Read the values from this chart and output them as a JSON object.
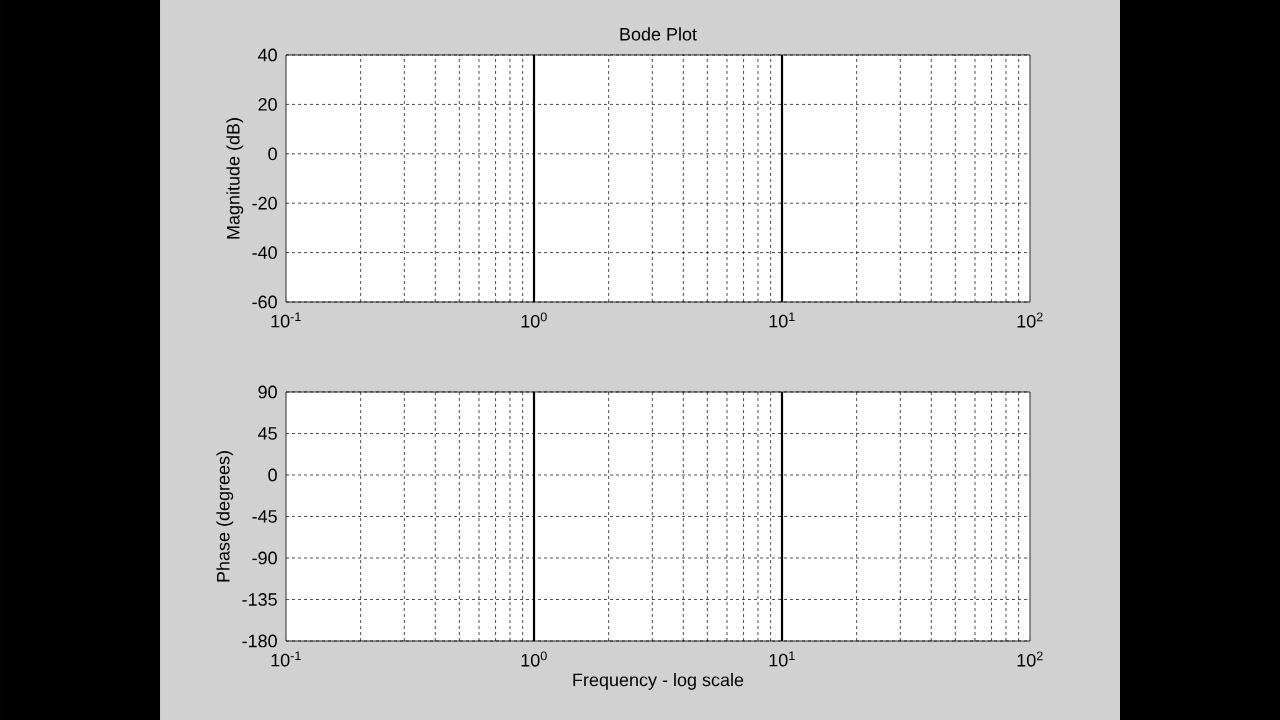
{
  "chart_data": [
    {
      "type": "line",
      "title": "Bode Plot",
      "ylabel": "Magnitude (dB)",
      "log": "x",
      "grid": true,
      "xlim": [
        0.1,
        100
      ],
      "xticks": [
        {
          "value": 0.1,
          "label": "10$^{-1}$"
        },
        {
          "value": 1,
          "label": "10$^{0}$"
        },
        {
          "value": 10,
          "label": "10$^{1}$"
        },
        {
          "value": 100,
          "label": "10$^{2}$"
        }
      ],
      "ylim": [
        -60,
        40
      ],
      "yticks": [
        -60,
        -40,
        -20,
        0,
        20,
        40
      ],
      "ref_lines": [
        {
          "axis": "x",
          "value": 1,
          "color": "#000000"
        },
        {
          "axis": "x",
          "value": 10,
          "color": "#000000"
        }
      ]
    },
    {
      "type": "line",
      "xlabel": "Frequency - log scale",
      "ylabel": "Phase (degrees)",
      "log": "x",
      "grid": true,
      "xlim": [
        0.1,
        100
      ],
      "xticks": [
        {
          "value": 0.1,
          "label": "10$^{-1}$"
        },
        {
          "value": 1,
          "label": "10$^{0}$"
        },
        {
          "value": 10,
          "label": "10$^{1}$"
        },
        {
          "value": 100,
          "label": "10$^{2}$"
        }
      ],
      "ylim": [
        -180,
        90
      ],
      "yticks": [
        -180,
        -135,
        -90,
        -45,
        0,
        45,
        90
      ],
      "ref_lines": [
        {
          "axis": "x",
          "value": 1,
          "color": "#000000"
        },
        {
          "axis": "x",
          "value": 10,
          "color": "#000000"
        }
      ]
    }
  ]
}
